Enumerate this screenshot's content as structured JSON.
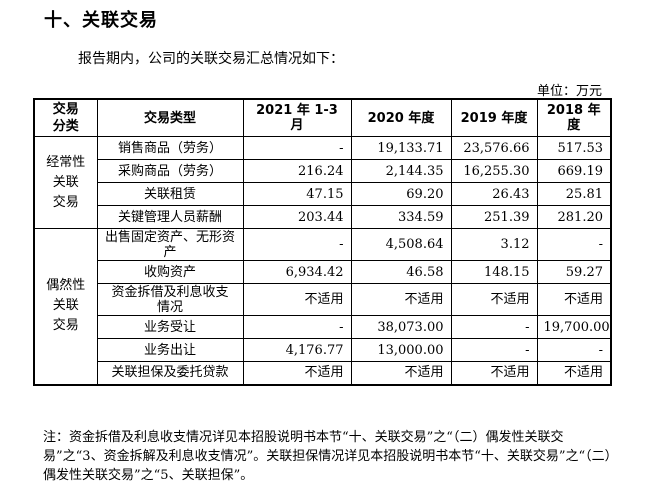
{
  "heading": "十、关联交易",
  "intro": "报告期内，公司的关联交易汇总情况如下：",
  "unit": "单位：万元",
  "table": {
    "headers": [
      "交易\n分类",
      "交易类型",
      "2021 年 1-3 月",
      "2020 年度",
      "2019 年度",
      "2018 年度"
    ],
    "groups": [
      {
        "category": "经常性\n关联\n交易",
        "rows": [
          {
            "type": "销售商品（劳务）",
            "v": [
              "-",
              "19,133.71",
              "23,576.66",
              "517.53"
            ]
          },
          {
            "type": "采购商品（劳务）",
            "v": [
              "216.24",
              "2,144.35",
              "16,255.30",
              "669.19"
            ]
          },
          {
            "type": "关联租赁",
            "v": [
              "47.15",
              "69.20",
              "26.43",
              "25.81"
            ]
          },
          {
            "type": "关键管理人员薪酬",
            "v": [
              "203.44",
              "334.59",
              "251.39",
              "281.20"
            ]
          }
        ]
      },
      {
        "category": "偶然性\n关联\n交易",
        "rows": [
          {
            "type": "出售固定资产、无形资\n产",
            "v": [
              "-",
              "4,508.64",
              "3.12",
              "-"
            ],
            "tall": true
          },
          {
            "type": "收购资产",
            "v": [
              "6,934.42",
              "46.58",
              "148.15",
              "59.27"
            ]
          },
          {
            "type": "资金拆借及利息收支\n情况",
            "v": [
              "不适用",
              "不适用",
              "不适用",
              "不适用"
            ],
            "tall": true
          },
          {
            "type": "业务受让",
            "v": [
              "-",
              "38,073.00",
              "-",
              "19,700.00"
            ]
          },
          {
            "type": "业务出让",
            "v": [
              "4,176.77",
              "13,000.00",
              "-",
              "-"
            ]
          },
          {
            "type": "关联担保及委托贷款",
            "v": [
              "不适用",
              "不适用",
              "不适用",
              "不适用"
            ]
          }
        ]
      }
    ]
  },
  "note": "注：资金拆借及利息收支情况详见本招股说明书本节“十、关联交易”之“（二）偶发性关联交易”之“3、资金拆解及利息收支情况”。关联担保情况详见本招股说明书本节“十、关联交易”之“（二）偶发性关联交易”之“5、关联担保”。"
}
